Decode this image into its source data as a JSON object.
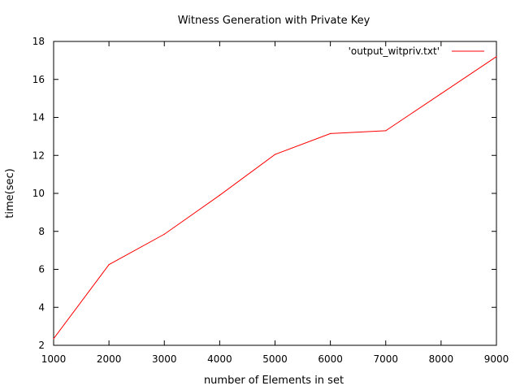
{
  "chart_data": {
    "type": "line",
    "title": "Witness Generation with Private Key",
    "xlabel": "number of Elements in set",
    "ylabel": "time(sec)",
    "xlim": [
      1000,
      9000
    ],
    "ylim": [
      2,
      18
    ],
    "xticks": [
      1000,
      2000,
      3000,
      4000,
      5000,
      6000,
      7000,
      8000,
      9000
    ],
    "yticks": [
      2,
      4,
      6,
      8,
      10,
      12,
      14,
      16,
      18
    ],
    "grid": false,
    "legend_position": "top-right",
    "series": [
      {
        "name": "'output_witpriv.txt'",
        "color": "#ff0000",
        "x": [
          1000,
          2000,
          3000,
          4000,
          5000,
          6000,
          7000,
          8000,
          9000
        ],
        "y": [
          2.35,
          6.25,
          7.85,
          9.9,
          12.05,
          13.15,
          13.3,
          15.25,
          17.2
        ]
      }
    ]
  }
}
